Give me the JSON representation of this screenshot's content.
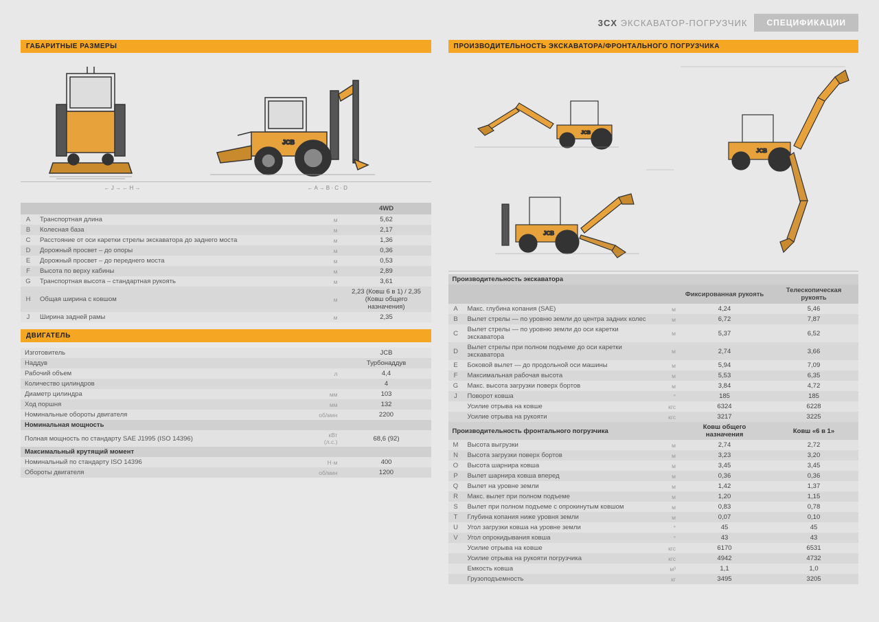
{
  "header": {
    "model": "3CX",
    "product": "ЭКСКАВАТОР-ПОГРУЗЧИК",
    "badge": "СПЕЦИФИКАЦИИ"
  },
  "left": {
    "section1_title": "ГАБАРИТНЫЕ РАЗМЕРЫ",
    "dims_header": "4WD",
    "dims": [
      {
        "k": "A",
        "n": "Транспортная длина",
        "u": "м",
        "v": "5,62"
      },
      {
        "k": "B",
        "n": "Колесная база",
        "u": "м",
        "v": "2,17"
      },
      {
        "k": "C",
        "n": "Расстояние от оси каретки стрелы экскаватора до заднего моста",
        "u": "м",
        "v": "1,36"
      },
      {
        "k": "D",
        "n": "Дорожный просвет – до опоры",
        "u": "м",
        "v": "0,36"
      },
      {
        "k": "E",
        "n": "Дорожный просвет – до переднего моста",
        "u": "м",
        "v": "0,53"
      },
      {
        "k": "F",
        "n": "Высота по верху кабины",
        "u": "м",
        "v": "2,89"
      },
      {
        "k": "G",
        "n": "Транспортная высота – стандартная рукоять",
        "u": "м",
        "v": "3,61"
      },
      {
        "k": "H",
        "n": "Общая ширина с ковшом",
        "u": "м",
        "v": "2,23 (Ковш 6 в 1) / 2,35 (Ковш общего назначения)"
      },
      {
        "k": "J",
        "n": "Ширина задней рамы",
        "u": "м",
        "v": "2,35"
      }
    ],
    "section2_title": "ДВИГАТЕЛЬ",
    "engine": [
      {
        "n": "Изготовитель",
        "u": "",
        "v": "JCB"
      },
      {
        "n": "Наддув",
        "u": "",
        "v": "Турбонаддув"
      },
      {
        "n": "Рабочий объем",
        "u": "л",
        "v": "4,4"
      },
      {
        "n": "Количество цилиндров",
        "u": "",
        "v": "4"
      },
      {
        "n": "Диаметр цилиндра",
        "u": "мм",
        "v": "103"
      },
      {
        "n": "Ход поршня",
        "u": "мм",
        "v": "132"
      },
      {
        "n": "Номинальные обороты двигателя",
        "u": "об/мин",
        "v": "2200"
      }
    ],
    "engine_sub1": "Номинальная мощность",
    "engine2": [
      {
        "n": "Полная мощность по стандарту SAE J1995 (ISO 14396)",
        "u": "кВт (л.с.)",
        "v": "68,6 (92)"
      }
    ],
    "engine_sub2": "Максимальный крутящий момент",
    "engine3": [
      {
        "n": "Номинальный по стандарту ISO 14396",
        "u": "Н·м",
        "v": "400"
      },
      {
        "n": "Обороты двигателя",
        "u": "об/мин",
        "v": "1200"
      }
    ]
  },
  "right": {
    "section_title": "ПРОИЗВОДИТЕЛЬНОСТЬ ЭКСКАВАТОРА/ФРОНТАЛЬНОГО ПОГРУЗЧИКА",
    "exc_header": "Производительность экскаватора",
    "exc_col1": "Фиксированная рукоять",
    "exc_col2": "Телескопическая рукоять",
    "exc": [
      {
        "k": "A",
        "n": "Макс. глубина копания (SAE)",
        "u": "м",
        "v1": "4,24",
        "v2": "5,46"
      },
      {
        "k": "B",
        "n": "Вылет стрелы — по уровню земли до центра задних колес",
        "u": "м",
        "v1": "6,72",
        "v2": "7,87"
      },
      {
        "k": "C",
        "n": "Вылет стрелы — по уровню земли до оси каретки экскаватора",
        "u": "м",
        "v1": "5,37",
        "v2": "6,52"
      },
      {
        "k": "D",
        "n": "Вылет стрелы при полном подъеме до оси каретки экскаватора",
        "u": "м",
        "v1": "2,74",
        "v2": "3,66"
      },
      {
        "k": "E",
        "n": "Боковой вылет — до продольной оси машины",
        "u": "м",
        "v1": "5,94",
        "v2": "7,09"
      },
      {
        "k": "F",
        "n": "Максимальная рабочая высота",
        "u": "м",
        "v1": "5,53",
        "v2": "6,35"
      },
      {
        "k": "G",
        "n": "Макс. высота загрузки поверх бортов",
        "u": "м",
        "v1": "3,84",
        "v2": "4,72"
      },
      {
        "k": "J",
        "n": "Поворот ковша",
        "u": "°",
        "v1": "185",
        "v2": "185"
      },
      {
        "k": "",
        "n": "Усилие отрыва на ковше",
        "u": "кгс",
        "v1": "6324",
        "v2": "6228"
      },
      {
        "k": "",
        "n": "Усилие отрыва на рукояти",
        "u": "кгс",
        "v1": "3217",
        "v2": "3225"
      }
    ],
    "loader_header": "Производительность фронтального погрузчика",
    "loader_col1": "Ковш общего назначения",
    "loader_col2": "Ковш «6 в 1»",
    "loader": [
      {
        "k": "M",
        "n": "Высота выгрузки",
        "u": "м",
        "v1": "2,74",
        "v2": "2,72"
      },
      {
        "k": "N",
        "n": "Высота загрузки поверх бортов",
        "u": "м",
        "v1": "3,23",
        "v2": "3,20"
      },
      {
        "k": "O",
        "n": "Высота шарнира ковша",
        "u": "м",
        "v1": "3,45",
        "v2": "3,45"
      },
      {
        "k": "P",
        "n": "Вылет шарнира ковша вперед",
        "u": "м",
        "v1": "0,36",
        "v2": "0,36"
      },
      {
        "k": "Q",
        "n": "Вылет на уровне земли",
        "u": "м",
        "v1": "1,42",
        "v2": "1,37"
      },
      {
        "k": "R",
        "n": "Макс. вылет при полном подъеме",
        "u": "м",
        "v1": "1,20",
        "v2": "1,15"
      },
      {
        "k": "S",
        "n": "Вылет при полном подъеме с опрокинутым ковшом",
        "u": "м",
        "v1": "0,83",
        "v2": "0,78"
      },
      {
        "k": "T",
        "n": "Глубина копания ниже уровня земли",
        "u": "м",
        "v1": "0,07",
        "v2": "0,10"
      },
      {
        "k": "U",
        "n": "Угол загрузки ковша на уровне земли",
        "u": "°",
        "v1": "45",
        "v2": "45"
      },
      {
        "k": "V",
        "n": "Угол опрокидывания ковша",
        "u": "°",
        "v1": "43",
        "v2": "43"
      },
      {
        "k": "",
        "n": "Усилие отрыва на ковше",
        "u": "кгс",
        "v1": "6170",
        "v2": "6531"
      },
      {
        "k": "",
        "n": "Усилие отрыва на рукояти погрузчика",
        "u": "кгс",
        "v1": "4942",
        "v2": "4732"
      },
      {
        "k": "",
        "n": "Емкость ковша",
        "u": "м³",
        "v1": "1,1",
        "v2": "1,0"
      },
      {
        "k": "",
        "n": "Грузоподъемность",
        "u": "кг",
        "v1": "3495",
        "v2": "3205"
      }
    ]
  },
  "colors": {
    "accent": "#f5a623",
    "machine": "#e8a23c",
    "machine_dark": "#333",
    "line": "#999"
  }
}
